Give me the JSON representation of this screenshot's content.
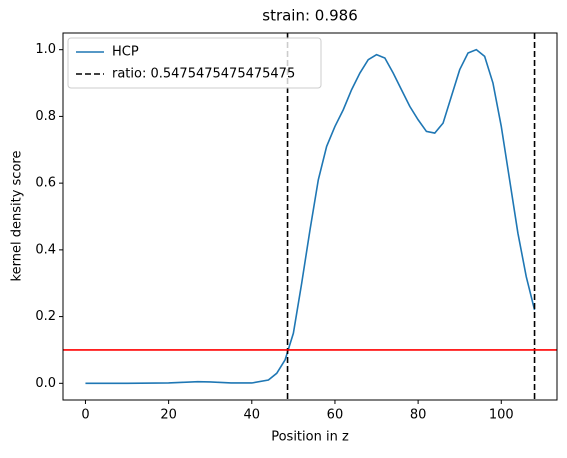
{
  "chart_data": {
    "type": "line",
    "title": "strain: 0.986",
    "xlabel": "Position in z",
    "ylabel": "kernel density score",
    "xlim": [
      -5.4,
      113.4
    ],
    "ylim": [
      -0.05,
      1.05
    ],
    "xticks": [
      0,
      20,
      40,
      60,
      80,
      100
    ],
    "yticks": [
      {
        "value": 0,
        "label": "0.0"
      },
      {
        "value": 0.2,
        "label": "0.2"
      },
      {
        "value": 0.4,
        "label": "0.4"
      },
      {
        "value": 0.6,
        "label": "0.6"
      },
      {
        "value": 0.8,
        "label": "0.8"
      },
      {
        "value": 1,
        "label": "1.0"
      }
    ],
    "legend": "upper left",
    "series": [
      {
        "name": "HCP",
        "color": "#1f77b4",
        "x": [
          0,
          10,
          20,
          27,
          30,
          35,
          40,
          44,
          46,
          48,
          50,
          52,
          54,
          56,
          58,
          60,
          62,
          64,
          66,
          68,
          70,
          72,
          74,
          76,
          78,
          80,
          82,
          84,
          86,
          88,
          90,
          92,
          94,
          96,
          98,
          100,
          102,
          104,
          106,
          108
        ],
        "values": [
          0,
          0,
          0.001,
          0.005,
          0.004,
          0.001,
          0.001,
          0.01,
          0.03,
          0.07,
          0.15,
          0.3,
          0.46,
          0.61,
          0.71,
          0.77,
          0.82,
          0.88,
          0.93,
          0.97,
          0.985,
          0.975,
          0.93,
          0.88,
          0.83,
          0.79,
          0.755,
          0.75,
          0.78,
          0.86,
          0.94,
          0.99,
          1.0,
          0.98,
          0.9,
          0.77,
          0.61,
          0.45,
          0.32,
          0.22
        ]
      }
    ],
    "vlines": {
      "name": "ratio: 0.5475475475475475",
      "color": "#000000",
      "values": [
        48.6,
        108
      ]
    },
    "hline": {
      "value": 0.1,
      "color": "#ff0000"
    }
  }
}
